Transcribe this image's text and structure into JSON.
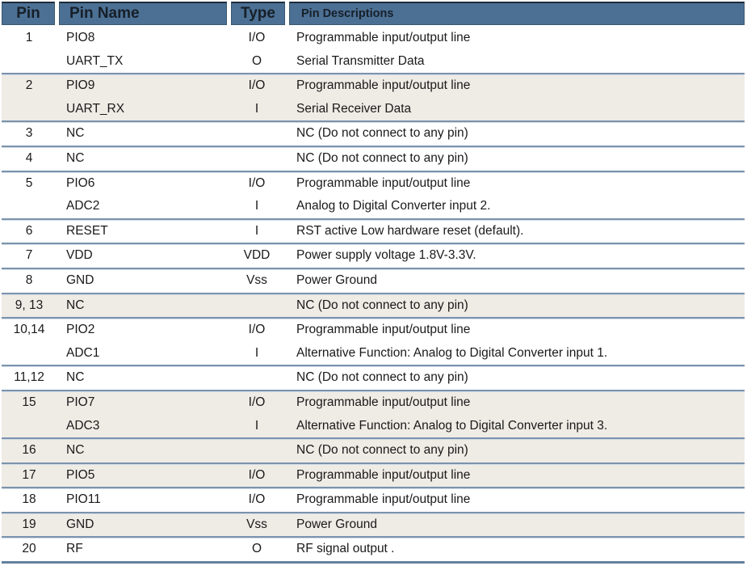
{
  "table": {
    "columns": [
      {
        "label": "Pin"
      },
      {
        "label": "Pin Name"
      },
      {
        "label": "Type"
      },
      {
        "label": "Pin Descriptions"
      }
    ],
    "groups": [
      {
        "pin": "1",
        "shaded": false,
        "rows": [
          {
            "name": "PIO8",
            "type": "I/O",
            "description": "Programmable input/output line"
          },
          {
            "name": "UART_TX",
            "type": "O",
            "description": "Serial Transmitter Data"
          }
        ]
      },
      {
        "pin": "2",
        "shaded": true,
        "rows": [
          {
            "name": "PIO9",
            "type": "I/O",
            "description": "Programmable input/output line"
          },
          {
            "name": "UART_RX",
            "type": "I",
            "description": "Serial Receiver Data"
          }
        ]
      },
      {
        "pin": "3",
        "shaded": false,
        "rows": [
          {
            "name": "NC",
            "type": "",
            "description": "NC (Do not connect to any pin)"
          }
        ]
      },
      {
        "pin": "4",
        "shaded": false,
        "rows": [
          {
            "name": "NC",
            "type": "",
            "description": "NC (Do not connect to any pin)"
          }
        ]
      },
      {
        "pin": "5",
        "shaded": false,
        "rows": [
          {
            "name": "PIO6",
            "type": "I/O",
            "description": "Programmable input/output line"
          },
          {
            "name": "ADC2",
            "type": "I",
            "description": "Analog to Digital Converter input 2."
          }
        ]
      },
      {
        "pin": "6",
        "shaded": false,
        "rows": [
          {
            "name": "RESET",
            "type": "I",
            "description": "RST active Low hardware reset (default)."
          }
        ]
      },
      {
        "pin": "7",
        "shaded": false,
        "rows": [
          {
            "name": "VDD",
            "type": "VDD",
            "description": "Power supply voltage 1.8V-3.3V."
          }
        ]
      },
      {
        "pin": "8",
        "shaded": false,
        "rows": [
          {
            "name": "GND",
            "type": "Vss",
            "description": "Power Ground"
          }
        ]
      },
      {
        "pin": "9, 13",
        "shaded": true,
        "rows": [
          {
            "name": "NC",
            "type": "",
            "description": "NC (Do not connect to any pin)"
          }
        ]
      },
      {
        "pin": "10,14",
        "shaded": false,
        "rows": [
          {
            "name": "PIO2",
            "type": "I/O",
            "description": "Programmable input/output line"
          },
          {
            "name": "ADC1",
            "type": "I",
            "description": "Alternative Function: Analog to Digital Converter input 1."
          }
        ]
      },
      {
        "pin": "11,12",
        "shaded": false,
        "rows": [
          {
            "name": "NC",
            "type": "",
            "description": "NC (Do not connect to any pin)"
          }
        ]
      },
      {
        "pin": "15",
        "shaded": true,
        "rows": [
          {
            "name": "PIO7",
            "type": "I/O",
            "description": "Programmable input/output line"
          },
          {
            "name": "ADC3",
            "type": "I",
            "description": "Alternative Function: Analog to Digital Converter input 3."
          }
        ]
      },
      {
        "pin": "16",
        "shaded": true,
        "rows": [
          {
            "name": "NC",
            "type": "",
            "description": "NC (Do not connect to any pin)"
          }
        ]
      },
      {
        "pin": "17",
        "shaded": true,
        "rows": [
          {
            "name": "PIO5",
            "type": "I/O",
            "description": "Programmable input/output line"
          }
        ]
      },
      {
        "pin": "18",
        "shaded": false,
        "rows": [
          {
            "name": "PIO11",
            "type": "I/O",
            "description": "Programmable input/output line"
          }
        ]
      },
      {
        "pin": "19",
        "shaded": true,
        "rows": [
          {
            "name": "GND",
            "type": "Vss",
            "description": "Power Ground"
          }
        ]
      },
      {
        "pin": "20",
        "shaded": false,
        "rows": [
          {
            "name": "RF",
            "type": "O",
            "description": "RF signal output ."
          }
        ]
      }
    ],
    "colors": {
      "header_bg": "#4c7094",
      "header_border": "#3a5770",
      "header_top_border": "#1f2b38",
      "header_text": "#161f29",
      "body_text": "#1a1a1a",
      "shaded_row_bg": "#efebe5",
      "row_line": "#7b93ad",
      "row_line_highlight": "#d3dde7",
      "bottom_line": "#64809e"
    }
  }
}
